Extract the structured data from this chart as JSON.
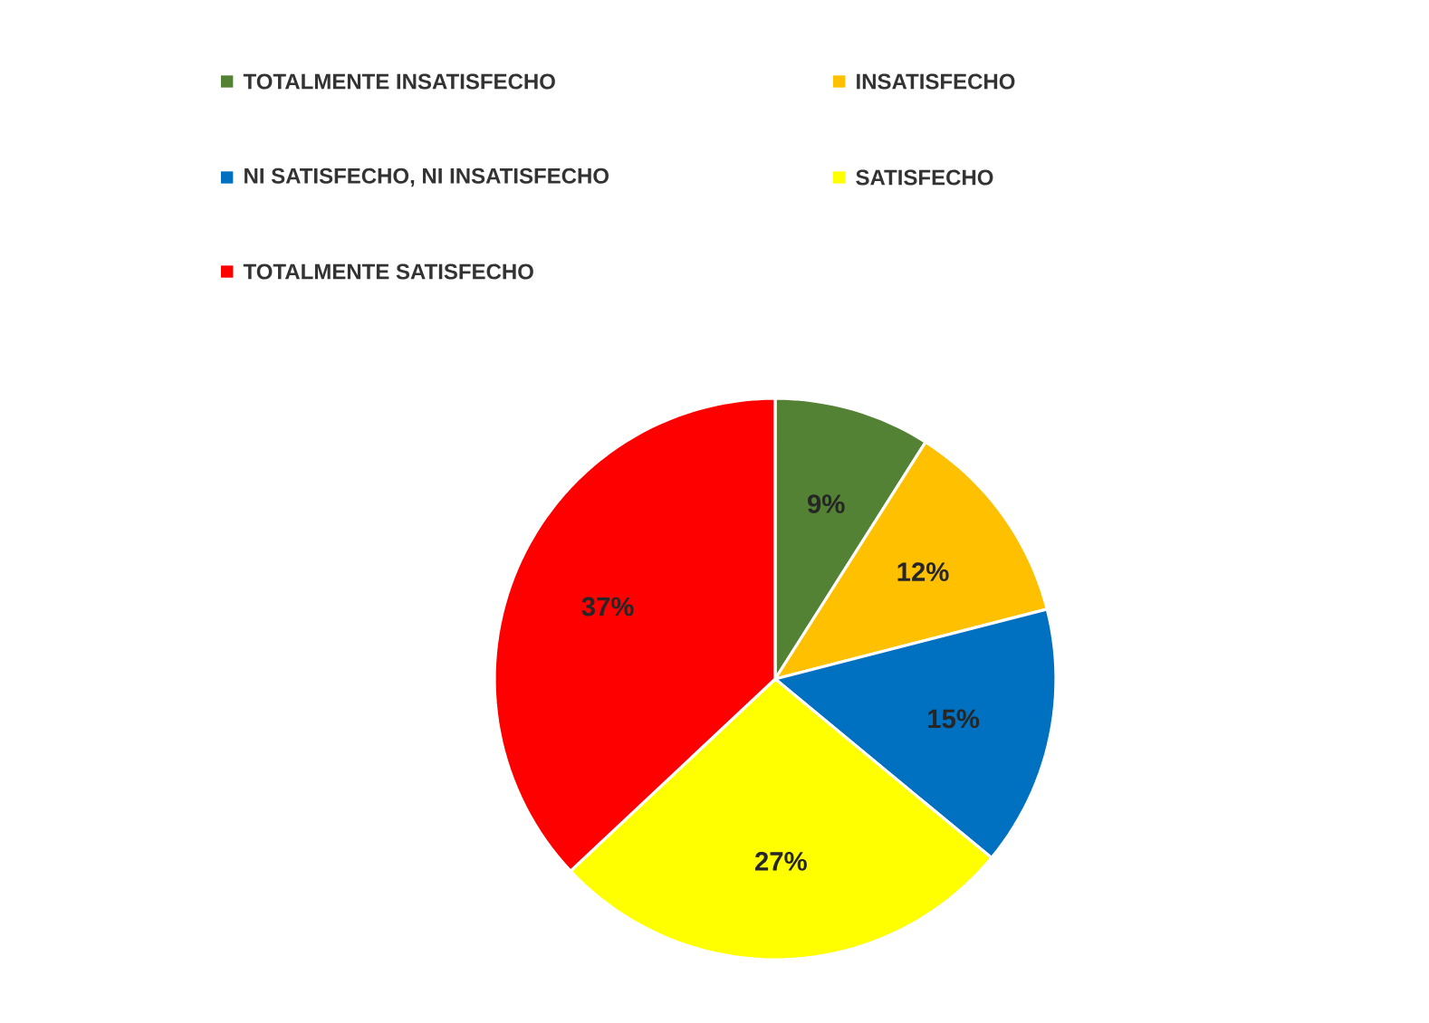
{
  "chart_data": {
    "type": "pie",
    "categories": [
      "TOTALMENTE INSATISFECHO",
      "INSATISFECHO",
      "NI SATISFECHO, NI INSATISFECHO",
      "SATISFECHO",
      "TOTALMENTE SATISFECHO"
    ],
    "values": [
      9,
      12,
      15,
      27,
      37
    ],
    "colors": [
      "#548235",
      "#ffc000",
      "#0070c0",
      "#ffff00",
      "#ff0000"
    ],
    "value_labels": [
      "9%",
      "12%",
      "15%",
      "27%",
      "37%"
    ],
    "legend": "top"
  }
}
